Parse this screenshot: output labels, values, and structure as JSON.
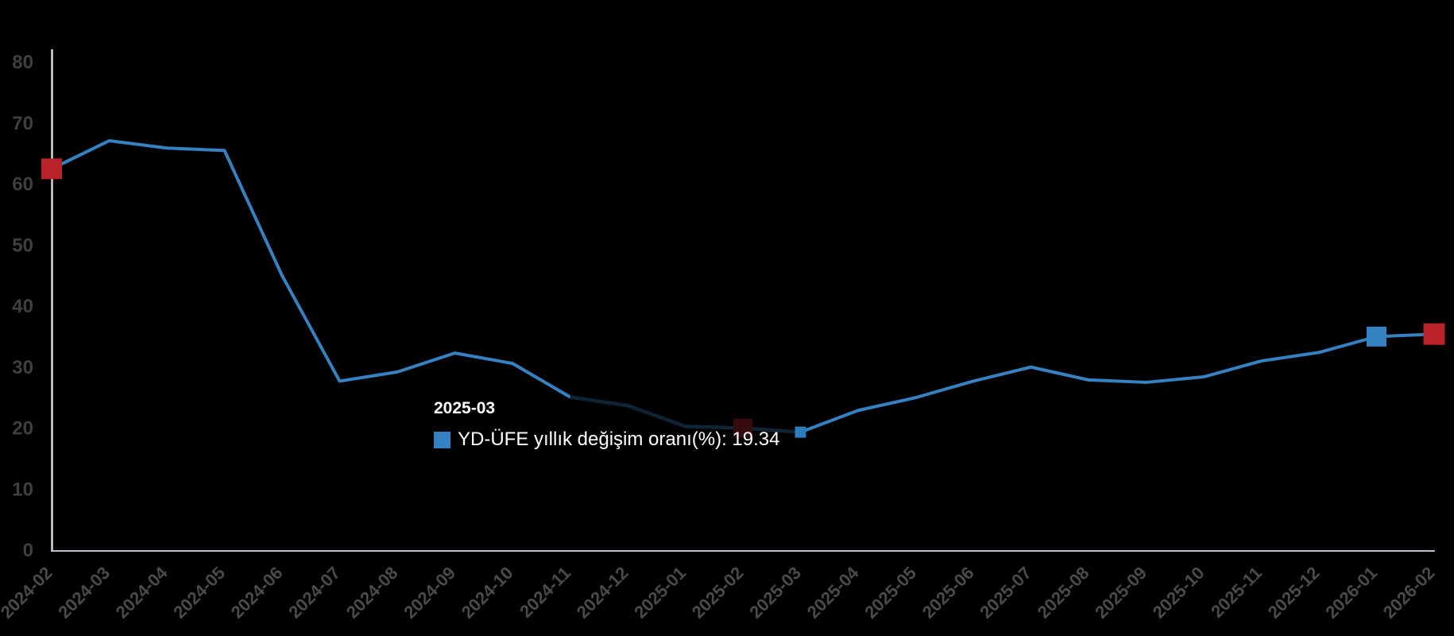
{
  "chart_data": {
    "type": "line",
    "title": "",
    "xlabel": "",
    "ylabel": "",
    "x": [
      "2024-02",
      "2024-03",
      "2024-04",
      "2024-05",
      "2024-06",
      "2024-07",
      "2024-08",
      "2024-09",
      "2024-10",
      "2024-11",
      "2024-12",
      "2025-01",
      "2025-02",
      "2025-03",
      "2025-04",
      "2025-05",
      "2025-06",
      "2025-07",
      "2025-08",
      "2025-09",
      "2025-10",
      "2025-11",
      "2025-12",
      "2026-01",
      "2026-02"
    ],
    "series": [
      {
        "name": "YD-ÜFE yıllık değişim oranı(%)",
        "values": [
          62.5,
          67.1,
          65.9,
          65.5,
          45.0,
          27.7,
          29.2,
          32.3,
          30.6,
          25.1,
          23.7,
          20.3,
          20.0,
          19.34,
          22.9,
          25.0,
          27.7,
          30.0,
          27.9,
          27.5,
          28.4,
          31.0,
          32.4,
          35.0,
          35.4
        ]
      }
    ],
    "ylim": [
      0,
      80
    ],
    "yticks": [
      0,
      10,
      20,
      30,
      40,
      50,
      60,
      70,
      80
    ],
    "grid": false,
    "legend_position": "none",
    "colors": {
      "background": "#000000",
      "line": "#3482c3",
      "dimmed_line": "#0e2434",
      "red_marker": "#b92228",
      "dimmed_red_marker": "#350b10",
      "blue_marker": "#3482c3",
      "hover_marker": "#2d7cbd",
      "y_axis_line": "#d4d9e1",
      "x_axis_line": "#b9c0c9",
      "y_label": "#3f3f3f",
      "x_label": "#4a4a4a"
    },
    "markers": [
      {
        "month": "2024-02",
        "color": "#b92228",
        "size": 26,
        "name": "marker-first-point"
      },
      {
        "month": "2025-02",
        "color": "#350b10",
        "size": 24,
        "name": "marker-prev-year-month-dimmed"
      },
      {
        "month": "2025-03",
        "color": "#2d7cbd",
        "size": 14,
        "name": "marker-hovered-point"
      },
      {
        "month": "2026-01",
        "color": "#3482c3",
        "size": 25,
        "name": "marker-previous-month"
      },
      {
        "month": "2026-02",
        "color": "#b92228",
        "size": 27,
        "name": "marker-last-point"
      }
    ],
    "dim_segment": {
      "from": "2024-11",
      "to": "2025-03"
    },
    "hovered_point": {
      "x": "2025-03",
      "value": 19.34
    }
  },
  "tooltip": {
    "header": "2025-03",
    "series_label": "YD-ÜFE yıllık değişim oranı(%)",
    "separator": ": ",
    "value": "19.34",
    "marker_color": "#3482c3"
  }
}
